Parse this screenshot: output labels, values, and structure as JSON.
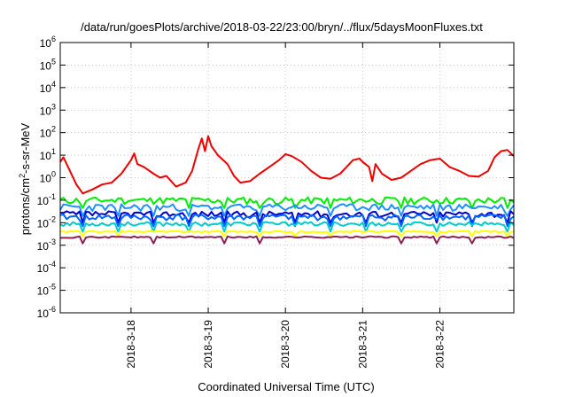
{
  "chart_data": {
    "type": "line",
    "title": "/data/run/goesPlots/archive/2018-03-22/23:00/bryn/../flux/5daysMoonFluxes.txt",
    "xlabel": "Coordinated Universal Time (UTC)",
    "ylabel": {
      "prefix": "protons/cm",
      "sup": "2",
      "suffix": "-s-sr-MeV"
    },
    "y_scale": "log",
    "ylim": [
      1e-06,
      1000000.0
    ],
    "y_ticks": [
      {
        "exp": "-6"
      },
      {
        "exp": "-5"
      },
      {
        "exp": "-4"
      },
      {
        "exp": "-3"
      },
      {
        "exp": "-2"
      },
      {
        "exp": "-1"
      },
      {
        "exp": "0"
      },
      {
        "exp": "1"
      },
      {
        "exp": "2"
      },
      {
        "exp": "3"
      },
      {
        "exp": "4"
      },
      {
        "exp": "5"
      },
      {
        "exp": "6"
      }
    ],
    "y_tick_base": "10",
    "xlim": [
      "2018-03-17 02:00",
      "2018-03-22 23:00"
    ],
    "x_ticks": [
      {
        "label": "2018-3-18",
        "value": "2018-03-18 00:00"
      },
      {
        "label": "2018-3-19",
        "value": "2018-03-19 00:00"
      },
      {
        "label": "2018-3-20",
        "value": "2018-03-20 00:00"
      },
      {
        "label": "2018-3-21",
        "value": "2018-03-21 00:00"
      },
      {
        "label": "2018-3-22",
        "value": "2018-03-22 00:00"
      }
    ],
    "grid": true,
    "series": [
      {
        "color": "#ee0000",
        "points": [
          [
            "2018-03-17 02:00",
            5
          ],
          [
            "2018-03-17 03:00",
            8
          ],
          [
            "2018-03-17 05:00",
            2
          ],
          [
            "2018-03-17 07:00",
            0.5
          ],
          [
            "2018-03-17 09:00",
            0.2
          ],
          [
            "2018-03-17 12:00",
            0.3
          ],
          [
            "2018-03-17 15:00",
            0.5
          ],
          [
            "2018-03-17 18:00",
            0.6
          ],
          [
            "2018-03-17 21:00",
            1.5
          ],
          [
            "2018-03-18 00:00",
            6
          ],
          [
            "2018-03-18 01:00",
            12
          ],
          [
            "2018-03-18 02:00",
            4
          ],
          [
            "2018-03-18 04:00",
            3
          ],
          [
            "2018-03-18 07:00",
            1.5
          ],
          [
            "2018-03-18 09:00",
            1
          ],
          [
            "2018-03-18 11:00",
            1.2
          ],
          [
            "2018-03-18 14:00",
            0.4
          ],
          [
            "2018-03-18 17:00",
            0.6
          ],
          [
            "2018-03-18 19:00",
            2
          ],
          [
            "2018-03-18 21:00",
            20
          ],
          [
            "2018-03-18 22:00",
            55
          ],
          [
            "2018-03-18 23:00",
            15
          ],
          [
            "2018-03-19 00:00",
            70
          ],
          [
            "2018-03-19 01:00",
            25
          ],
          [
            "2018-03-19 03:00",
            10
          ],
          [
            "2018-03-19 06:00",
            4
          ],
          [
            "2018-03-19 08:00",
            1.2
          ],
          [
            "2018-03-19 10:00",
            0.6
          ],
          [
            "2018-03-19 13:00",
            0.7
          ],
          [
            "2018-03-19 16:00",
            1.5
          ],
          [
            "2018-03-19 19:00",
            3
          ],
          [
            "2018-03-19 22:00",
            6
          ],
          [
            "2018-03-20 00:00",
            11
          ],
          [
            "2018-03-20 02:00",
            9
          ],
          [
            "2018-03-20 05:00",
            5
          ],
          [
            "2018-03-20 08:00",
            2
          ],
          [
            "2018-03-20 11:00",
            1
          ],
          [
            "2018-03-20 14:00",
            0.9
          ],
          [
            "2018-03-20 17:00",
            1.5
          ],
          [
            "2018-03-20 19:00",
            3
          ],
          [
            "2018-03-20 21:00",
            6
          ],
          [
            "2018-03-20 23:00",
            7
          ],
          [
            "2018-03-21 00:00",
            5
          ],
          [
            "2018-03-21 02:00",
            3
          ],
          [
            "2018-03-21 03:00",
            0.7
          ],
          [
            "2018-03-21 04:00",
            4
          ],
          [
            "2018-03-21 06:00",
            1.5
          ],
          [
            "2018-03-21 09:00",
            0.8
          ],
          [
            "2018-03-21 12:00",
            1
          ],
          [
            "2018-03-21 15:00",
            2
          ],
          [
            "2018-03-21 18:00",
            4
          ],
          [
            "2018-03-21 21:00",
            6
          ],
          [
            "2018-03-22 00:00",
            7
          ],
          [
            "2018-03-22 03:00",
            3
          ],
          [
            "2018-03-22 06:00",
            2
          ],
          [
            "2018-03-22 09:00",
            1.2
          ],
          [
            "2018-03-22 12:00",
            1.1
          ],
          [
            "2018-03-22 15:00",
            2
          ],
          [
            "2018-03-22 17:00",
            8
          ],
          [
            "2018-03-22 19:00",
            15
          ],
          [
            "2018-03-22 21:00",
            17
          ],
          [
            "2018-03-22 23:00",
            9
          ]
        ]
      },
      {
        "color": "#00ee00",
        "base": 0.1,
        "dip": 0.045,
        "spread": 0.35,
        "seed": 11
      },
      {
        "color": "#1e90ff",
        "base": 0.05,
        "dip": 0.02,
        "spread": 0.35,
        "seed": 23
      },
      {
        "color": "#0000cc",
        "base": 0.025,
        "dip": 0.01,
        "spread": 0.3,
        "seed": 37
      },
      {
        "color": "#0066ff",
        "base": 0.018,
        "dip": 0.007,
        "spread": 0.3,
        "seed": 41
      },
      {
        "color": "#00cccc",
        "base": 0.009,
        "dip": 0.004,
        "spread": 0.2,
        "seed": 53
      },
      {
        "color": "#ffff00",
        "base": 0.004,
        "dip": 0.0025,
        "spread": 0.08,
        "seed": 61
      },
      {
        "color": "#8b2252",
        "base": 0.0023,
        "dip": 0.0012,
        "spread": 0.08,
        "seed": 71
      }
    ]
  }
}
